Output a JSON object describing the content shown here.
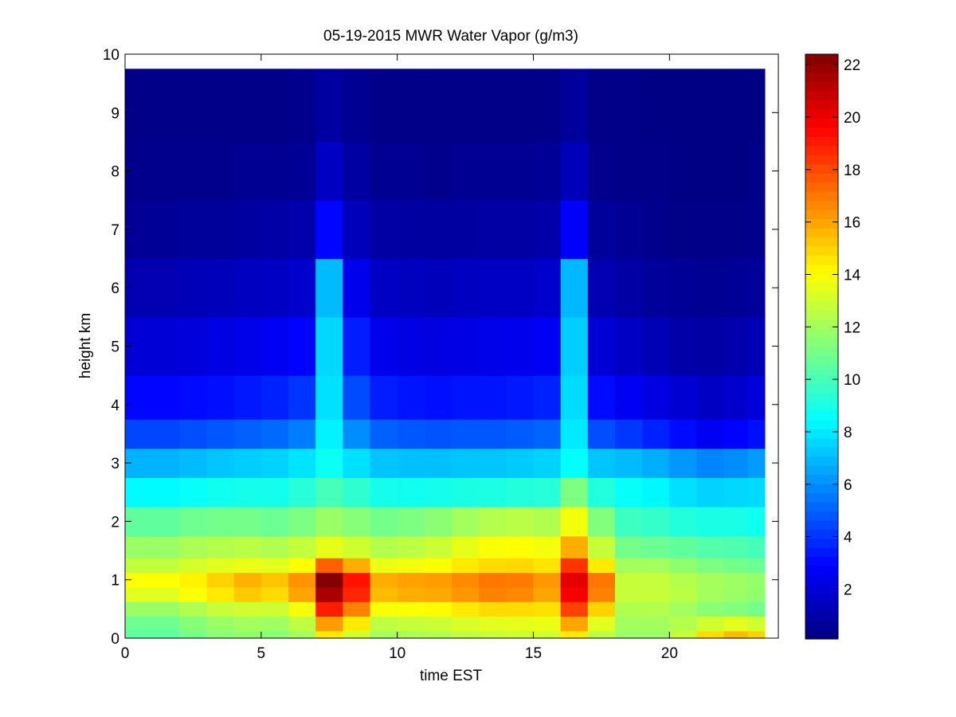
{
  "chart_data": {
    "type": "heatmap",
    "title": "05-19-2015 MWR Water Vapor (g/m3)",
    "xlabel": "time EST",
    "ylabel": "height km",
    "xlim": [
      0,
      24
    ],
    "ylim": [
      0,
      10
    ],
    "x_ticks": [
      0,
      5,
      10,
      15,
      20
    ],
    "y_ticks": [
      0,
      1,
      2,
      3,
      4,
      5,
      6,
      7,
      8,
      9,
      10
    ],
    "colormap": "jet",
    "colorbar": {
      "min": 0.1,
      "max": 22.4,
      "ticks": [
        2,
        4,
        6,
        8,
        10,
        12,
        14,
        16,
        18,
        20,
        22
      ],
      "placement": "right"
    },
    "data_extent": {
      "x": [
        0,
        23.5
      ],
      "y": [
        0,
        9.75
      ]
    },
    "time_columns_hours": [
      0.5,
      1.5,
      2.5,
      3.5,
      4.5,
      5.5,
      6.5,
      7.5,
      8.5,
      9.5,
      10.5,
      11.5,
      12.5,
      13.5,
      14.5,
      15.5,
      16.5,
      17.5,
      18.5,
      19.5,
      20.5,
      21.5,
      22.5,
      23.25
    ],
    "height_levels_km": [
      0,
      0.25,
      0.5,
      0.75,
      1.0,
      1.25,
      1.5,
      2.0,
      2.5,
      3.0,
      3.5,
      4.0,
      5.0,
      6.0,
      7.0,
      8.0,
      9.0
    ],
    "values": [
      [
        10.5,
        10.8,
        11.8,
        13.4,
        14.0,
        12.7,
        11.8,
        10.6,
        8.4,
        6.8,
        4.4,
        3.0,
        2.0,
        1.2,
        0.6,
        0.4,
        0.3
      ],
      [
        10.5,
        10.8,
        11.8,
        13.4,
        14.0,
        12.7,
        11.8,
        10.6,
        8.4,
        6.8,
        4.4,
        3.0,
        2.0,
        1.2,
        0.6,
        0.4,
        0.3
      ],
      [
        11.0,
        11.4,
        12.3,
        13.9,
        14.3,
        13.1,
        12.2,
        10.9,
        8.6,
        7.0,
        4.6,
        3.1,
        2.1,
        1.3,
        0.7,
        0.4,
        0.3
      ],
      [
        11.5,
        11.8,
        12.8,
        14.5,
        15.0,
        13.4,
        12.4,
        11.0,
        8.8,
        7.2,
        4.8,
        3.2,
        2.3,
        1.4,
        0.7,
        0.4,
        0.3
      ],
      [
        11.6,
        12.0,
        13.0,
        15.2,
        15.7,
        13.6,
        12.5,
        11.0,
        8.9,
        7.4,
        5.0,
        3.4,
        2.4,
        1.5,
        0.8,
        0.5,
        0.3
      ],
      [
        11.5,
        11.9,
        12.9,
        14.8,
        15.3,
        13.4,
        12.3,
        10.8,
        8.9,
        7.5,
        5.2,
        3.6,
        2.6,
        1.6,
        0.9,
        0.5,
        0.3
      ],
      [
        12.0,
        12.6,
        13.8,
        16.0,
        16.4,
        14.0,
        12.7,
        11.2,
        9.3,
        7.9,
        5.6,
        4.0,
        2.9,
        1.8,
        1.1,
        0.6,
        0.4
      ],
      [
        14.5,
        16.2,
        19.0,
        21.5,
        22.3,
        17.5,
        13.5,
        11.8,
        10.0,
        8.7,
        8.2,
        7.8,
        7.6,
        7.0,
        3.0,
        1.6,
        0.8
      ],
      [
        13.0,
        14.5,
        16.8,
        18.8,
        19.2,
        15.8,
        13.0,
        11.4,
        9.5,
        7.8,
        6.0,
        4.5,
        3.5,
        2.5,
        1.4,
        0.8,
        0.5
      ],
      [
        12.0,
        12.6,
        13.9,
        15.5,
        15.8,
        13.6,
        12.4,
        11.0,
        8.9,
        7.2,
        5.0,
        3.5,
        2.5,
        1.6,
        0.9,
        0.5,
        0.3
      ],
      [
        12.2,
        12.8,
        14.0,
        15.8,
        16.1,
        13.8,
        12.6,
        11.2,
        8.8,
        7.1,
        4.8,
        3.3,
        2.3,
        1.5,
        0.8,
        0.5,
        0.3
      ],
      [
        12.3,
        12.9,
        14.1,
        15.9,
        16.2,
        14.0,
        12.9,
        11.5,
        8.9,
        7.1,
        4.7,
        3.2,
        2.2,
        1.4,
        0.8,
        0.4,
        0.3
      ],
      [
        12.6,
        13.2,
        14.5,
        16.3,
        16.6,
        14.5,
        13.5,
        12.0,
        9.0,
        7.2,
        4.8,
        3.3,
        2.3,
        1.5,
        0.8,
        0.5,
        0.3
      ],
      [
        12.8,
        13.4,
        14.8,
        16.8,
        17.0,
        14.8,
        13.9,
        12.4,
        9.1,
        7.2,
        4.8,
        3.3,
        2.4,
        1.6,
        0.9,
        0.5,
        0.3
      ],
      [
        12.9,
        13.5,
        14.8,
        16.6,
        16.9,
        14.9,
        14.0,
        12.5,
        9.2,
        7.3,
        4.9,
        3.4,
        2.5,
        1.6,
        0.9,
        0.5,
        0.3
      ],
      [
        13.0,
        13.6,
        14.7,
        16.0,
        16.3,
        14.6,
        13.8,
        12.3,
        9.3,
        7.5,
        5.1,
        3.6,
        2.7,
        1.8,
        1.0,
        0.6,
        0.3
      ],
      [
        14.5,
        16.0,
        18.2,
        19.8,
        20.2,
        18.5,
        15.8,
        13.8,
        11.2,
        8.5,
        8.0,
        7.7,
        7.4,
        6.9,
        2.8,
        1.4,
        0.7
      ],
      [
        12.5,
        13.4,
        15.0,
        16.8,
        17.0,
        14.5,
        12.8,
        11.3,
        9.2,
        7.2,
        4.6,
        3.1,
        2.0,
        1.2,
        0.7,
        0.4,
        0.3
      ],
      [
        11.8,
        12.0,
        12.3,
        12.8,
        12.8,
        12.0,
        11.0,
        9.8,
        8.6,
        7.0,
        4.1,
        2.6,
        1.6,
        0.9,
        0.5,
        0.3,
        0.3
      ],
      [
        11.8,
        12.0,
        12.4,
        12.8,
        12.8,
        12.0,
        10.8,
        9.6,
        8.3,
        6.7,
        3.6,
        2.2,
        1.3,
        0.7,
        0.4,
        0.3,
        0.2
      ],
      [
        12.8,
        12.4,
        12.0,
        12.5,
        12.4,
        11.6,
        10.6,
        9.2,
        7.8,
        6.2,
        3.1,
        1.9,
        1.0,
        0.6,
        0.3,
        0.2,
        0.2
      ],
      [
        14.8,
        13.0,
        11.5,
        12.0,
        12.1,
        11.2,
        10.3,
        9.0,
        7.5,
        5.8,
        2.6,
        1.6,
        0.9,
        0.5,
        0.3,
        0.2,
        0.2
      ],
      [
        15.5,
        13.4,
        11.3,
        11.8,
        11.9,
        11.0,
        10.2,
        9.0,
        7.6,
        6.0,
        2.9,
        1.8,
        1.1,
        0.6,
        0.3,
        0.2,
        0.2
      ],
      [
        15.0,
        13.0,
        11.0,
        11.6,
        11.7,
        10.8,
        10.0,
        8.8,
        7.7,
        6.3,
        3.2,
        2.1,
        1.3,
        0.7,
        0.4,
        0.3,
        0.2
      ]
    ]
  }
}
